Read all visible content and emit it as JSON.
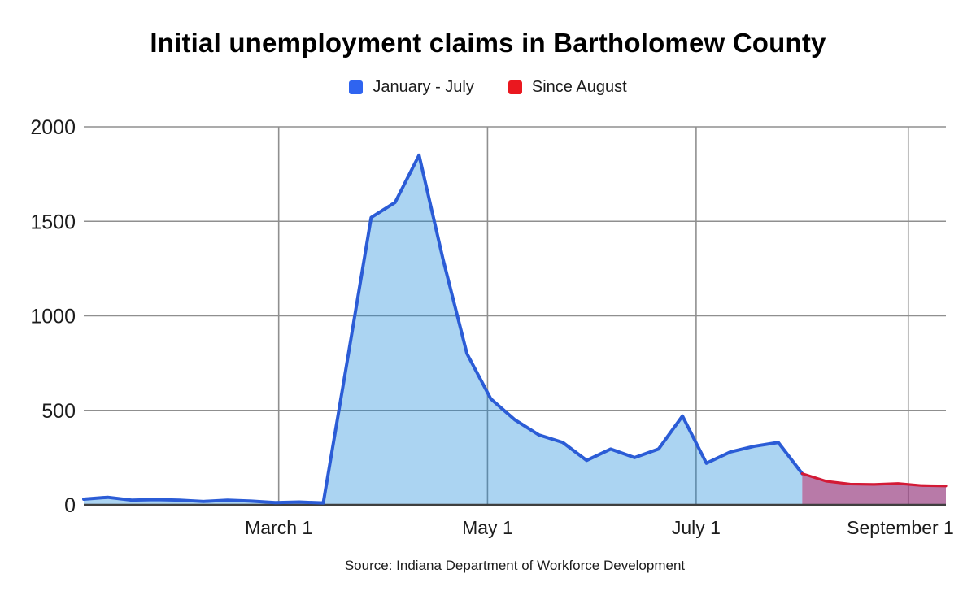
{
  "page": {
    "title": "Initial unemployment claims in Bartholomew County",
    "source_note": "Source: Indiana Department of Workforce Development"
  },
  "legend": {
    "items": [
      {
        "label": "January - July",
        "color": "#2f64f0"
      },
      {
        "label": "Since August",
        "color": "#ea181f"
      }
    ]
  },
  "chart_data": {
    "type": "area",
    "title": "Initial unemployment claims in Bartholomew County",
    "xlabel": "",
    "ylabel": "",
    "x_unit": "week (weekly initial claims, estimated from gridlines)",
    "ylim": [
      0,
      2000
    ],
    "y_ticks": [
      0,
      500,
      1000,
      1500,
      2000
    ],
    "weeks_total": 36,
    "grid": true,
    "legend_position": "top",
    "x_ticks": [
      {
        "label": "March 1",
        "week": 8.14
      },
      {
        "label": "May 1",
        "week": 16.86
      },
      {
        "label": "July 1",
        "week": 25.57
      },
      {
        "label": "September 1",
        "week": 34.43
      }
    ],
    "series": [
      {
        "name": "January - July",
        "line_color": "#2b5cd6",
        "fill_color": "rgba(13,131,217,0.35)",
        "start_week": 0,
        "x": [
          "Jan 4",
          "Jan 11",
          "Jan 18",
          "Jan 25",
          "Feb 1",
          "Feb 8",
          "Feb 15",
          "Feb 22",
          "Feb 29",
          "Mar 7",
          "Mar 14",
          "Mar 21",
          "Mar 28",
          "Apr 4",
          "Apr 11",
          "Apr 18",
          "Apr 25",
          "May 2",
          "May 9",
          "May 16",
          "May 23",
          "May 30",
          "Jun 6",
          "Jun 13",
          "Jun 20",
          "Jun 27",
          "Jul 4",
          "Jul 11",
          "Jul 18",
          "Jul 25",
          "Aug 1"
        ],
        "values": [
          30,
          40,
          25,
          28,
          25,
          18,
          25,
          20,
          12,
          15,
          10,
          760,
          1520,
          1600,
          1850,
          1300,
          800,
          560,
          450,
          370,
          330,
          235,
          295,
          250,
          295,
          470,
          220,
          280,
          310,
          330,
          165
        ]
      },
      {
        "name": "Since August",
        "line_color": "#d31a36",
        "fill_color": "rgba(126,13,97,0.55)",
        "start_week": 30,
        "x": [
          "Aug 1",
          "Aug 8",
          "Aug 15",
          "Aug 22",
          "Aug 29",
          "Sep 5",
          "Sep 12"
        ],
        "values": [
          165,
          125,
          110,
          108,
          113,
          102,
          100
        ]
      }
    ]
  }
}
